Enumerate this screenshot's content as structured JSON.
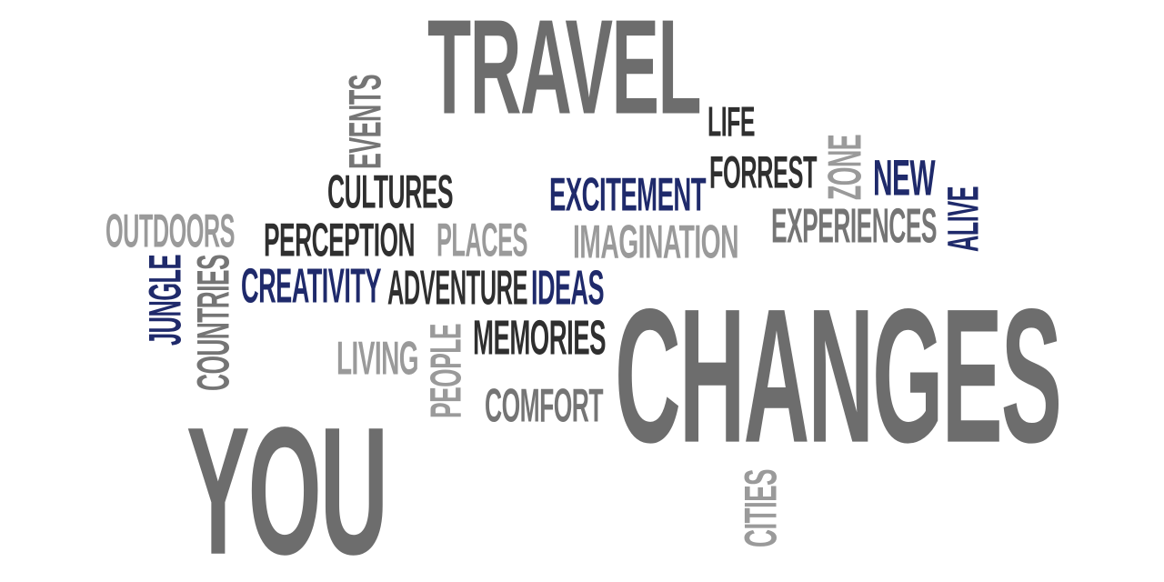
{
  "colors": {
    "dark_gray": "#6d6d6d",
    "mid_gray": "#757575",
    "light_gray": "#9a9a9a",
    "navy": "#1f2a6b",
    "charcoal": "#2f2f2f",
    "background": "#ffffff"
  },
  "words": {
    "travel": "TRAVEL",
    "life": "LIFE",
    "events": "EVENTS",
    "forrest": "FORREST",
    "zone": "ZONE",
    "new": "NEW",
    "cultures": "CULTURES",
    "excitement": "EXCITEMENT",
    "alive": "ALIVE",
    "outdoors": "OUTDOORS",
    "perception": "PERCEPTION",
    "places": "PLACES",
    "imagination": "IMAGINATION",
    "experiences": "EXPERIENCES",
    "jungle": "JUNGLE",
    "countries": "COUNTRIES",
    "creativity": "CREATIVITY",
    "adventure": "ADVENTURE",
    "ideas": "IDEAS",
    "changes": "CHANGES",
    "living": "LIVING",
    "people": "PEOPLE",
    "memories": "MEMORIES",
    "comfort": "COMFORT",
    "you": "YOU",
    "cities": "CITIES"
  }
}
